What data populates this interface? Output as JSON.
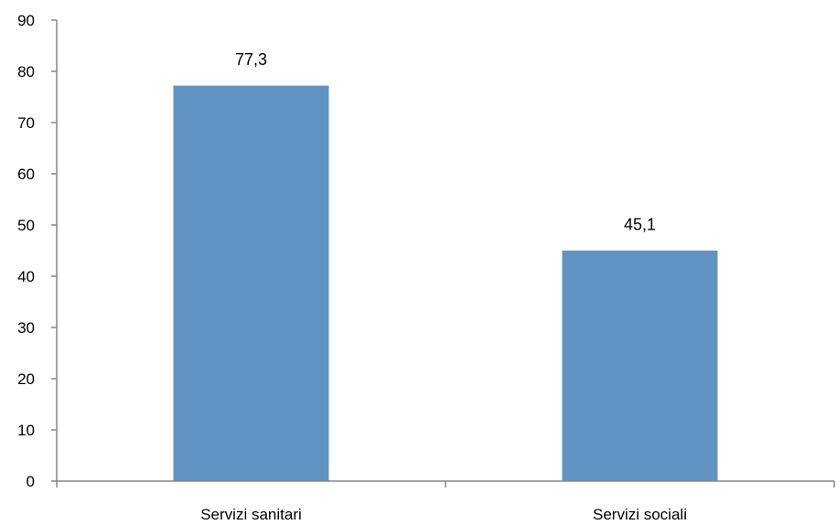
{
  "chart_data": {
    "type": "bar",
    "title": "",
    "xlabel": "",
    "ylabel": "",
    "categories": [
      "Servizi sanitari",
      "Servizi sociali"
    ],
    "values": [
      77.3,
      45.1
    ],
    "data_labels": [
      "77,3",
      "45,1"
    ],
    "ylim": [
      0,
      90
    ],
    "yticks": [
      0,
      10,
      20,
      30,
      40,
      50,
      60,
      70,
      80,
      90
    ],
    "ytick_labels": [
      "0",
      "10",
      "20",
      "30",
      "40",
      "50",
      "60",
      "70",
      "80",
      "90"
    ],
    "grid": false,
    "legend": "none",
    "colors": {
      "bar_fill": "#6194C3",
      "bar_stroke": "#ffffff",
      "axis": "#868686"
    }
  }
}
